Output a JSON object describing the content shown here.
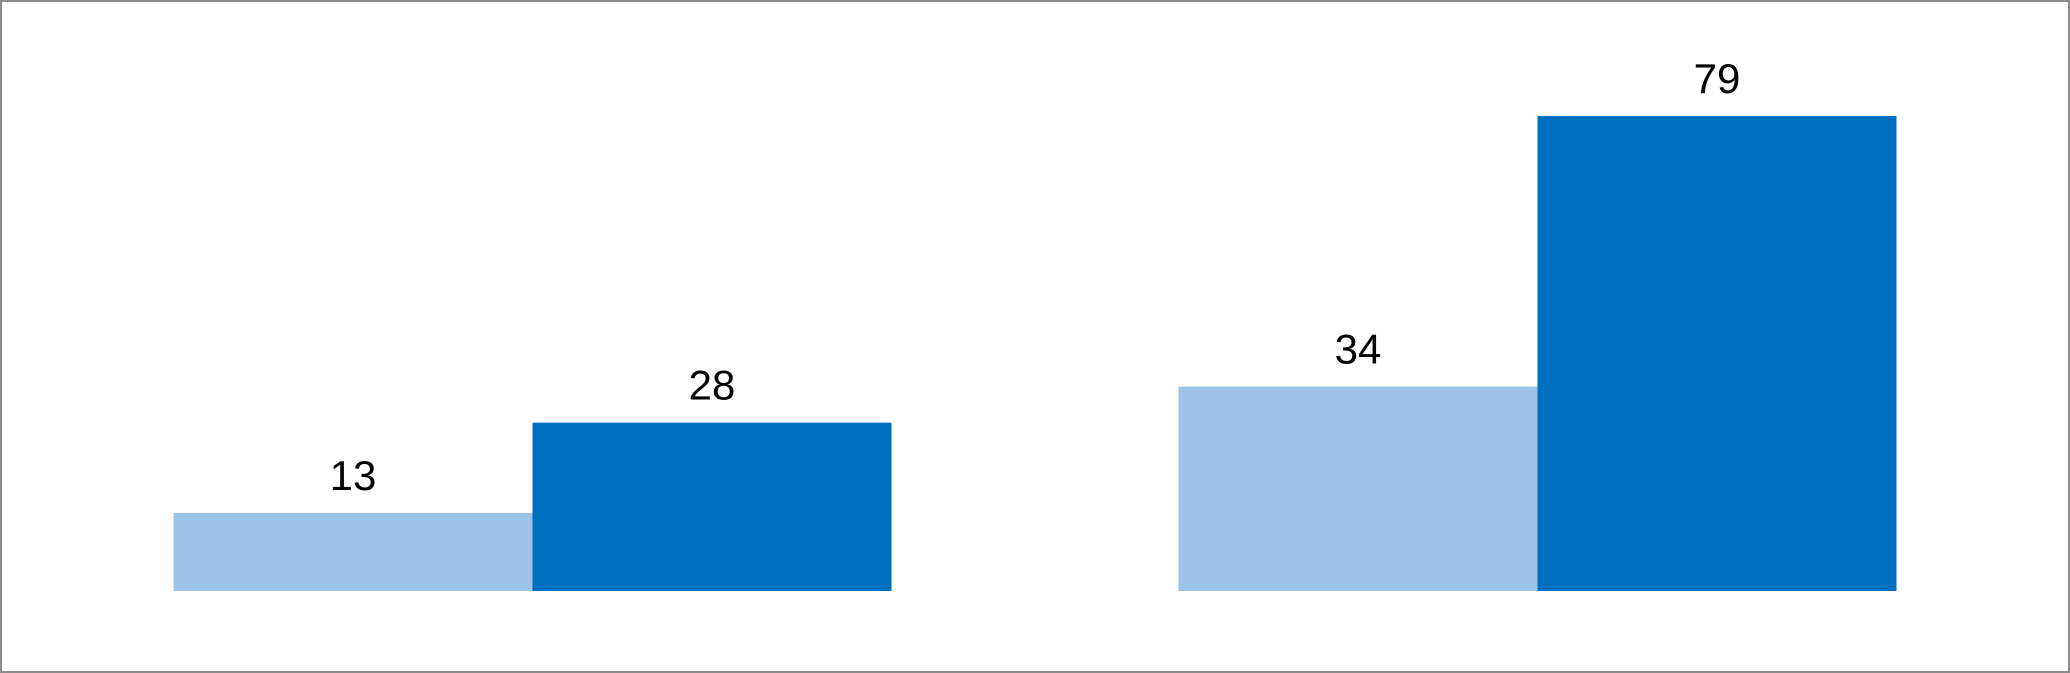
{
  "chart_data": {
    "type": "bar",
    "categories": [
      null,
      null
    ],
    "series": [
      {
        "color": "#9dc3e6",
        "values": [
          13,
          34
        ]
      },
      {
        "color": "#0070c0",
        "values": [
          28,
          79
        ]
      }
    ]
  }
}
